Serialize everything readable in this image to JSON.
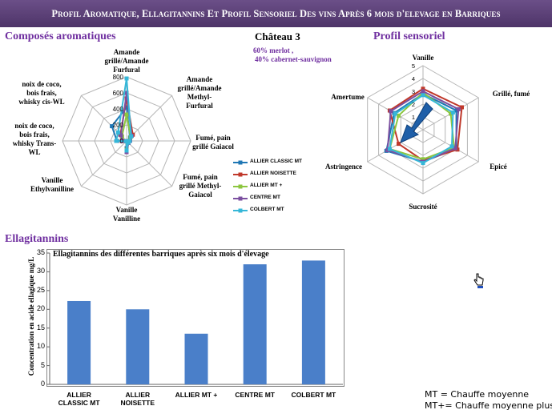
{
  "banner": {
    "title": "Profil Aromatique, Ellagitannins Et Profil Sensoriel Des vins Après 6 mois d'elevage en Barriques"
  },
  "sections": {
    "aromatic": "Composés aromatiques",
    "sensory": "Profil sensoriel",
    "ellagitannins": "Ellagitannins"
  },
  "chateau": {
    "name": "Château 3",
    "blend": [
      "60% merlot ,",
      "40% cabernet-sauvignon"
    ]
  },
  "colors": {
    "allier_classic": "#1f77b4",
    "allier_noisette": "#c0392b",
    "allier_mt_plus": "#8cc63f",
    "centre": "#7b4fa0",
    "colbert": "#36b7d8",
    "bar": "#4a7fc9",
    "banner": "#5a3d78"
  },
  "chart_data": [
    {
      "type": "radar",
      "title": "Composés aromatiques",
      "axes": [
        "Amande grillé/Amande Furfural",
        "Amande grillé/Amande Methyl-Furfural",
        "Fumé, pain grillé Gaiacol",
        "Fumé, pain grillé Methyl-Gaiacol",
        "Vanille Vanilline",
        "Vanille Ethylvanilline",
        "noix de coco, bois frais, whisky Trans-WL",
        "noix de coco, bois frais, whisky cis-WL"
      ],
      "axis_labels_lines": [
        [
          "Amande",
          "grillé/Amande",
          "Furfural"
        ],
        [
          "Amande",
          "grillé/Amande",
          "Methyl-",
          "Furfural"
        ],
        [
          "Fumé, pain",
          "grillé Gaiacol"
        ],
        [
          "Fumé, pain",
          "grillé Methyl-",
          "Gaiacol"
        ],
        [
          "Vanille",
          "Vanilline"
        ],
        [
          "Vanille",
          "Ethylvanilline"
        ],
        [
          "noix de coco,",
          "bois frais,",
          "whisky Trans-",
          "WL"
        ],
        [
          "noix de coco,",
          "bois frais,",
          "whisky cis-WL"
        ]
      ],
      "ticks": [
        0,
        200,
        400,
        600,
        800
      ],
      "rlim": [
        0,
        800
      ],
      "series": [
        {
          "name": "ALLIER CLASSIC MT",
          "values": [
            420,
            60,
            30,
            25,
            90,
            5,
            120,
            260
          ]
        },
        {
          "name": "ALLIER NOISETTE",
          "values": [
            530,
            110,
            40,
            30,
            130,
            5,
            60,
            110
          ]
        },
        {
          "name": "ALLIER MT +",
          "values": [
            330,
            70,
            35,
            30,
            110,
            5,
            40,
            80
          ]
        },
        {
          "name": "CENTRE MT",
          "values": [
            600,
            90,
            45,
            35,
            140,
            5,
            50,
            100
          ]
        },
        {
          "name": "COLBERT MT",
          "values": [
            780,
            80,
            40,
            30,
            120,
            5,
            130,
            150
          ]
        }
      ]
    },
    {
      "type": "radar",
      "title": "Profil sensoriel",
      "axes": [
        "Vanille",
        "Grillé, fumé",
        "Epicé",
        "Sucrosité",
        "Astringence",
        "Amertume"
      ],
      "ticks": [
        0,
        1,
        2,
        3,
        4,
        5
      ],
      "rlim": [
        0,
        5
      ],
      "series": [
        {
          "name": "ALLIER CLASSIC MT",
          "values": [
            2.8,
            3.0,
            3.0,
            2.5,
            3.3,
            2.6
          ]
        },
        {
          "name": "ALLIER NOISETTE",
          "values": [
            3.2,
            3.5,
            3.1,
            2.4,
            2.2,
            3.0
          ]
        },
        {
          "name": "ALLIER MT +",
          "values": [
            2.9,
            2.5,
            2.8,
            2.3,
            3.0,
            2.2
          ]
        },
        {
          "name": "CENTRE MT",
          "values": [
            3.0,
            3.2,
            2.9,
            2.5,
            3.2,
            2.9
          ]
        },
        {
          "name": "COLBERT MT",
          "values": [
            2.7,
            2.7,
            2.6,
            2.6,
            3.0,
            2.5
          ]
        }
      ]
    },
    {
      "type": "bar",
      "title": "Ellagitannins des différentes barriques après six mois d'élevage",
      "ylabel": "Concentration en acide ellagique mg/L",
      "xlabel": "",
      "categories": [
        "ALLIER CLASSIC MT",
        "ALLIER NOISETTE",
        "ALLIER MT +",
        "CENTRE MT",
        "COLBERT MT"
      ],
      "categories_lines": [
        [
          "ALLIER",
          "CLASSIC MT"
        ],
        [
          "ALLIER",
          "NOISETTE"
        ],
        [
          "ALLIER MT +"
        ],
        [
          "CENTRE MT"
        ],
        [
          "COLBERT MT"
        ]
      ],
      "values": [
        22.2,
        20.0,
        13.5,
        32.0,
        33.0
      ],
      "ylim": [
        0,
        35
      ],
      "yticks": [
        0,
        5,
        10,
        15,
        20,
        25,
        30,
        35
      ]
    }
  ],
  "notes": [
    "MT = Chauffe moyenne",
    "MT+= Chauffe moyenne plus"
  ]
}
